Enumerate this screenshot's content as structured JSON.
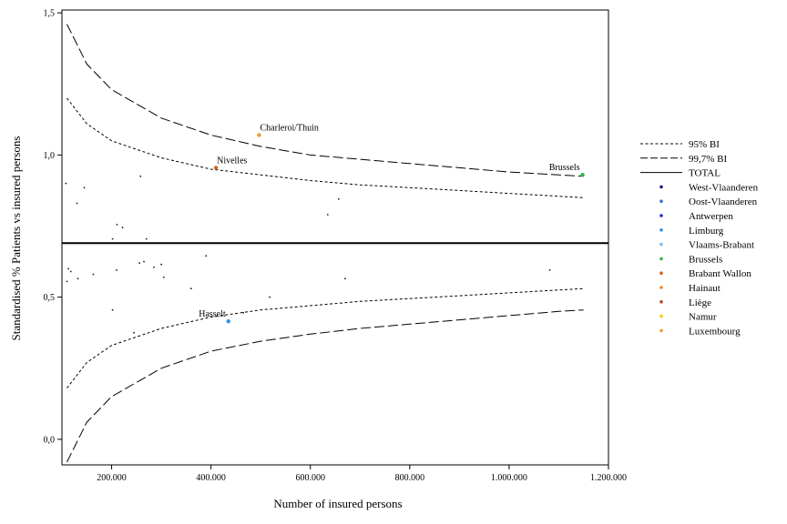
{
  "chart_data": {
    "type": "scatter",
    "xlabel": "Number of insured persons",
    "ylabel": "Standardised % Patients vs insured persons",
    "xlim": [
      100000,
      1200000
    ],
    "ylim": [
      -0.09,
      1.51
    ],
    "x_ticks": [
      200000,
      400000,
      600000,
      800000,
      1000000,
      1200000
    ],
    "x_tick_labels": [
      "200.000",
      "400.000",
      "600.000",
      "800.000",
      "1.000.000",
      "1.200.000"
    ],
    "y_ticks": [
      0.0,
      0.5,
      1.0,
      1.5
    ],
    "y_tick_labels": [
      "0,0",
      "0,5",
      "1,0",
      "1,5"
    ],
    "grid": false,
    "legend_position": "right",
    "total_value": 0.69,
    "limit_lines": [
      {
        "name": "95% BI",
        "style": "dotted",
        "x": [
          110000,
          150000,
          200000,
          300000,
          400000,
          500000,
          600000,
          700000,
          800000,
          900000,
          1000000,
          1100000,
          1150000
        ],
        "upper": [
          1.2,
          1.11,
          1.05,
          0.99,
          0.95,
          0.93,
          0.91,
          0.895,
          0.885,
          0.875,
          0.865,
          0.855,
          0.85
        ],
        "lower": [
          0.18,
          0.27,
          0.33,
          0.39,
          0.43,
          0.455,
          0.47,
          0.485,
          0.495,
          0.505,
          0.515,
          0.525,
          0.53
        ]
      },
      {
        "name": "99,7% BI",
        "style": "dashed",
        "x": [
          110000,
          150000,
          200000,
          300000,
          400000,
          500000,
          600000,
          700000,
          800000,
          900000,
          1000000,
          1100000,
          1150000
        ],
        "upper": [
          1.46,
          1.32,
          1.23,
          1.13,
          1.07,
          1.03,
          1.0,
          0.985,
          0.97,
          0.955,
          0.94,
          0.93,
          0.925
        ],
        "lower": [
          -0.08,
          0.06,
          0.15,
          0.25,
          0.31,
          0.345,
          0.37,
          0.39,
          0.405,
          0.42,
          0.435,
          0.45,
          0.455
        ]
      }
    ],
    "legend": [
      {
        "name": "95% BI",
        "kind": "line",
        "style": "dotted"
      },
      {
        "name": "99,7% BI",
        "kind": "line",
        "style": "dashed"
      },
      {
        "name": "TOTAL",
        "kind": "line",
        "style": "solid"
      },
      {
        "name": "West-Vlaanderen",
        "kind": "point",
        "color": "#1a1a8c"
      },
      {
        "name": "Oost-Vlaanderen",
        "kind": "point",
        "color": "#3a6fd8"
      },
      {
        "name": "Antwerpen",
        "kind": "point",
        "color": "#1c2fd6"
      },
      {
        "name": "Limburg",
        "kind": "point",
        "color": "#2f8fe8"
      },
      {
        "name": "Vlaams-Brabant",
        "kind": "point",
        "color": "#7fbff5"
      },
      {
        "name": "Brussels",
        "kind": "point",
        "color": "#33b54a"
      },
      {
        "name": "Brabant Wallon",
        "kind": "point",
        "color": "#d6601e"
      },
      {
        "name": "Hainaut",
        "kind": "point",
        "color": "#f08a2a"
      },
      {
        "name": "Liège",
        "kind": "point",
        "color": "#b4472a"
      },
      {
        "name": "Namur",
        "kind": "point",
        "color": "#f5c71a"
      },
      {
        "name": "Luxembourg",
        "kind": "point",
        "color": "#f09a35"
      }
    ],
    "highlighted_points": [
      {
        "label": "Charleroi/Thuin",
        "x": 497000,
        "y": 1.07,
        "color": "#f09a35",
        "label_pos": "right"
      },
      {
        "label": "Nivelles",
        "x": 410000,
        "y": 0.955,
        "color": "#d6601e",
        "label_pos": "right"
      },
      {
        "label": "Brussels",
        "x": 1148000,
        "y": 0.93,
        "color": "#33b54a",
        "label_pos": "left"
      },
      {
        "label": "Hasselt",
        "x": 435000,
        "y": 0.415,
        "color": "#2f8fe8",
        "label_pos": "left"
      }
    ],
    "points": [
      {
        "x": 108000,
        "y": 0.9
      },
      {
        "x": 130000,
        "y": 0.83
      },
      {
        "x": 145000,
        "y": 0.885
      },
      {
        "x": 258000,
        "y": 0.925
      },
      {
        "x": 211000,
        "y": 0.755
      },
      {
        "x": 222000,
        "y": 0.745
      },
      {
        "x": 202000,
        "y": 0.705
      },
      {
        "x": 270000,
        "y": 0.705
      },
      {
        "x": 635000,
        "y": 0.79
      },
      {
        "x": 657000,
        "y": 0.845
      },
      {
        "x": 113000,
        "y": 0.6
      },
      {
        "x": 118000,
        "y": 0.59
      },
      {
        "x": 110000,
        "y": 0.555
      },
      {
        "x": 132000,
        "y": 0.565
      },
      {
        "x": 163000,
        "y": 0.58
      },
      {
        "x": 210000,
        "y": 0.595
      },
      {
        "x": 256000,
        "y": 0.62
      },
      {
        "x": 265000,
        "y": 0.625
      },
      {
        "x": 285000,
        "y": 0.605
      },
      {
        "x": 300000,
        "y": 0.615
      },
      {
        "x": 305000,
        "y": 0.57
      },
      {
        "x": 390000,
        "y": 0.645
      },
      {
        "x": 360000,
        "y": 0.53
      },
      {
        "x": 518000,
        "y": 0.5
      },
      {
        "x": 670000,
        "y": 0.565
      },
      {
        "x": 1082000,
        "y": 0.595
      },
      {
        "x": 202000,
        "y": 0.455
      },
      {
        "x": 245000,
        "y": 0.375
      },
      {
        "x": 465000,
        "y": 0.445
      }
    ]
  }
}
